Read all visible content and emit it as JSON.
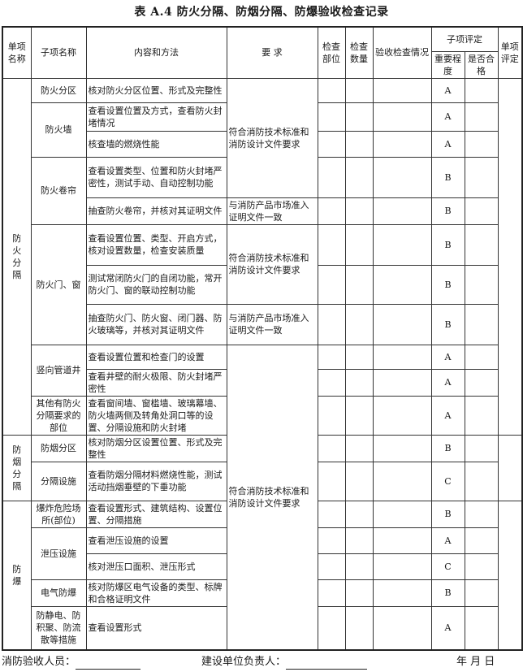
{
  "title": "表 A.4   防火分隔、防烟分隔、防爆验收检查记录",
  "headers": {
    "group": "单项名称",
    "sub": "子项名称",
    "content": "内容和方法",
    "requirement": "要 求",
    "location": "检查部位",
    "quantity": "检查数量",
    "result": "验收检查情况",
    "sub_eval": "子项评定",
    "importance": "重要程度",
    "pass": "是否合格",
    "overall": "单项评定"
  },
  "groups": [
    {
      "name": "防火分隔",
      "subitems": [
        {
          "name": "防火分区",
          "checks": [
            {
              "content": "核对防火分区位置、形式及完整性",
              "requirement": "符合消防技术标准和消防设计文件要求",
              "importance": "A"
            }
          ]
        },
        {
          "name": "防火墙",
          "checks": [
            {
              "content": "查看设置位置及方式，查看防火封堵情况",
              "requirement": "符合消防技术标准和消防设计文件要求",
              "importance": "A"
            },
            {
              "content": "核查墙的燃烧性能",
              "requirement": "符合消防技术标准和消防设计文件要求",
              "importance": "A"
            }
          ]
        },
        {
          "name": "防火卷帘",
          "checks": [
            {
              "content": "查看设置类型、位置和防火封堵严密性，测试手动、自动控制功能",
              "requirement": "符合消防技术标准和消防设计文件要求",
              "importance": "B"
            },
            {
              "content": "抽查防火卷帘，并核对其证明文件",
              "requirement": "与消防产品市场准入证明文件一致",
              "importance": "B"
            }
          ]
        },
        {
          "name": "防火门、窗",
          "checks": [
            {
              "content": "查看设置位置、类型、开启方式，核对设置数量，检查安装质量",
              "requirement": "符合消防技术标准和消防设计文件要求",
              "importance": "B"
            },
            {
              "content": "测试常闭防火门的自闭功能，常开防火门、窗的联动控制功能",
              "requirement": "符合消防技术标准和消防设计文件要求",
              "importance": "B"
            },
            {
              "content": "抽查防火门、防火窗、闭门器、防火玻璃等，并核对其证明文件",
              "requirement": "与消防产品市场准入证明文件一致",
              "importance": "B"
            }
          ]
        },
        {
          "name": "竖向管道井",
          "checks": [
            {
              "content": "查看设置位置和检查门的设置",
              "requirement": "符合消防技术标准和消防设计文件要求",
              "importance": "A"
            },
            {
              "content": "查看井壁的耐火极限、防火封堵严密性",
              "requirement": "符合消防技术标准和消防设计文件要求",
              "importance": "A"
            }
          ]
        },
        {
          "name": "其他有防火分隔要求的部位",
          "checks": [
            {
              "content": "查看窗间墙、窗槛墙、玻璃幕墙、防火墙两侧及转角处洞口等的设置、分隔设施和防火封堵",
              "requirement": "符合消防技术标准和消防设计文件要求",
              "importance": "A"
            }
          ]
        }
      ]
    },
    {
      "name": "防烟分隔",
      "subitems": [
        {
          "name": "防烟分区",
          "checks": [
            {
              "content": "核对防烟分区设置位置、形式及完整性",
              "requirement": "符合消防技术标准和消防设计文件要求",
              "importance": "B"
            }
          ]
        },
        {
          "name": "分隔设施",
          "checks": [
            {
              "content": "查看防烟分隔材料燃烧性能，测试活动挡烟垂壁的下垂功能",
              "requirement": "符合消防技术标准和消防设计文件要求",
              "importance": "C"
            }
          ]
        }
      ]
    },
    {
      "name": "防爆",
      "subitems": [
        {
          "name": "爆炸危险场所(部位)",
          "checks": [
            {
              "content": "查看设置形式、建筑结构、设置位置、分隔措施",
              "requirement": "符合消防技术标准和消防设计文件要求",
              "importance": "B"
            }
          ]
        },
        {
          "name": "泄压设施",
          "checks": [
            {
              "content": "查看泄压设施的设置",
              "requirement": "符合消防技术标准和消防设计文件要求",
              "importance": "A"
            },
            {
              "content": "核对泄压口面积、泄压形式",
              "requirement": "符合消防技术标准和消防设计文件要求",
              "importance": "C"
            }
          ]
        },
        {
          "name": "电气防爆",
          "checks": [
            {
              "content": "核对防爆区电气设备的类型、标牌和合格证明文件",
              "requirement": "符合消防技术标准和消防设计文件要求",
              "importance": "B"
            }
          ]
        },
        {
          "name": "防静电、防积聚、防流散等措施",
          "checks": [
            {
              "content": "查看设置形式",
              "requirement": "符合消防技术标准和消防设计文件要求",
              "importance": "A"
            }
          ]
        }
      ]
    }
  ],
  "footer": {
    "inspector_label": "消防验收人员：",
    "owner_label": "建设单位负责人：",
    "date_label": "年   月   日"
  }
}
